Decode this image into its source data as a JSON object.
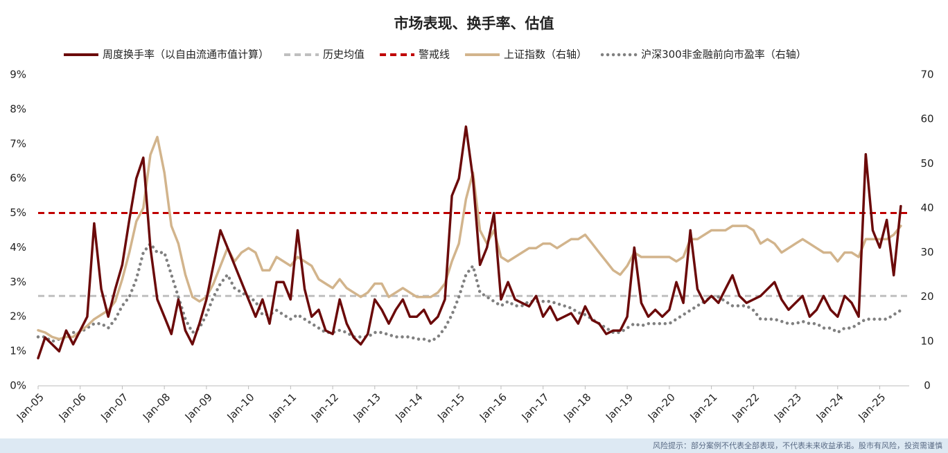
{
  "chart_data": {
    "type": "line",
    "title": "市场表现、换手率、估值",
    "x": [
      2005,
      2005.167,
      2005.333,
      2005.5,
      2005.667,
      2005.833,
      2006,
      2006.167,
      2006.333,
      2006.5,
      2006.667,
      2006.833,
      2007,
      2007.167,
      2007.333,
      2007.5,
      2007.667,
      2007.833,
      2008,
      2008.167,
      2008.333,
      2008.5,
      2008.667,
      2008.833,
      2009,
      2009.167,
      2009.333,
      2009.5,
      2009.667,
      2009.833,
      2010,
      2010.167,
      2010.333,
      2010.5,
      2010.667,
      2010.833,
      2011,
      2011.167,
      2011.333,
      2011.5,
      2011.667,
      2011.833,
      2012,
      2012.167,
      2012.333,
      2012.5,
      2012.667,
      2012.833,
      2013,
      2013.167,
      2013.333,
      2013.5,
      2013.667,
      2013.833,
      2014,
      2014.167,
      2014.333,
      2014.5,
      2014.667,
      2014.833,
      2015,
      2015.167,
      2015.333,
      2015.5,
      2015.667,
      2015.833,
      2016,
      2016.167,
      2016.333,
      2016.5,
      2016.667,
      2016.833,
      2017,
      2017.167,
      2017.333,
      2017.5,
      2017.667,
      2017.833,
      2018,
      2018.167,
      2018.333,
      2018.5,
      2018.667,
      2018.833,
      2019,
      2019.167,
      2019.333,
      2019.5,
      2019.667,
      2019.833,
      2020,
      2020.167,
      2020.333,
      2020.5,
      2020.667,
      2020.833,
      2021,
      2021.167,
      2021.333,
      2021.5,
      2021.667,
      2021.833,
      2022,
      2022.167,
      2022.333,
      2022.5,
      2022.667,
      2022.833,
      2023,
      2023.167,
      2023.333,
      2023.5,
      2023.667,
      2023.833,
      2024,
      2024.167,
      2024.333,
      2024.5,
      2024.667,
      2024.833,
      2025,
      2025.167,
      2025.333,
      2025.5
    ],
    "series": [
      {
        "name": "周度换手率（以自由流通市值计算）",
        "color": "#6b0a0a",
        "axis": "y",
        "values": [
          0.8,
          1.4,
          1.2,
          1.0,
          1.6,
          1.2,
          1.6,
          2.0,
          4.7,
          2.8,
          2.0,
          2.8,
          3.5,
          4.8,
          6.0,
          6.6,
          4.0,
          2.5,
          2.0,
          1.5,
          2.5,
          1.6,
          1.2,
          1.8,
          2.5,
          3.5,
          4.5,
          4.0,
          3.5,
          3.0,
          2.5,
          2.0,
          2.5,
          1.8,
          3.0,
          3.0,
          2.5,
          4.5,
          2.8,
          2.0,
          2.2,
          1.6,
          1.5,
          2.5,
          1.8,
          1.4,
          1.2,
          1.5,
          2.5,
          2.2,
          1.8,
          2.2,
          2.5,
          2.0,
          2.0,
          2.2,
          1.8,
          2.0,
          2.5,
          5.5,
          6.0,
          7.5,
          6.0,
          3.5,
          4.0,
          5.0,
          2.5,
          3.0,
          2.5,
          2.4,
          2.3,
          2.6,
          2.0,
          2.3,
          1.9,
          2.0,
          2.1,
          1.8,
          2.3,
          1.9,
          1.8,
          1.5,
          1.6,
          1.6,
          2.0,
          4.0,
          2.4,
          2.0,
          2.2,
          2.0,
          2.2,
          3.0,
          2.4,
          4.5,
          2.8,
          2.4,
          2.6,
          2.4,
          2.8,
          3.2,
          2.6,
          2.4,
          2.5,
          2.6,
          2.8,
          3.0,
          2.5,
          2.2,
          2.4,
          2.6,
          2.0,
          2.2,
          2.6,
          2.2,
          2.0,
          2.6,
          2.4,
          2.0,
          6.7,
          4.5,
          4.0,
          4.8,
          3.2,
          5.2
        ]
      },
      {
        "name": "上证指数（右轴）",
        "color": "#d2b48c",
        "axis": "y2",
        "values": [
          12.5,
          12,
          11,
          10.5,
          11,
          11,
          12.3,
          13.5,
          15,
          16,
          17,
          19,
          24,
          30,
          37,
          40,
          52,
          56,
          48,
          36,
          32,
          25,
          20,
          19,
          20,
          23,
          27,
          31,
          28,
          30,
          31,
          30,
          26,
          26,
          29,
          28,
          27,
          29,
          28,
          27,
          24,
          23,
          22,
          24,
          22,
          21,
          20,
          21,
          23,
          23,
          20,
          21,
          22,
          21,
          20,
          20,
          20,
          21,
          23,
          28,
          32,
          42,
          48,
          35,
          32,
          35,
          29,
          28,
          29,
          30,
          31,
          31,
          32,
          32,
          31,
          32,
          33,
          33,
          34,
          32,
          30,
          28,
          26,
          25,
          27,
          30,
          29,
          29,
          29,
          29,
          29,
          28,
          29,
          33,
          33,
          34,
          35,
          35,
          35,
          36,
          36,
          36,
          35,
          32,
          33,
          32,
          30,
          31,
          32,
          33,
          32,
          31,
          30,
          30,
          28,
          30,
          30,
          29,
          33,
          33,
          33,
          33,
          34,
          36
        ]
      },
      {
        "name": "沪深300非金融前向市盈率（右轴）",
        "color": "#808080",
        "axis": "y2",
        "dotted": true,
        "values": [
          11,
          11,
          10,
          10.5,
          11,
          12,
          12,
          13,
          14,
          14,
          13,
          15,
          18,
          20,
          24,
          30,
          32,
          30,
          30,
          25,
          20,
          15,
          12,
          13,
          16,
          20,
          23,
          25,
          22,
          21,
          20,
          19,
          16,
          16,
          17,
          16,
          15,
          16,
          15,
          14,
          13,
          12,
          12,
          12.5,
          12,
          11,
          11,
          11,
          12,
          12,
          11.5,
          11,
          11,
          11,
          10.5,
          10.5,
          10,
          11,
          13,
          16,
          20,
          25,
          27,
          21,
          20,
          19,
          18,
          19,
          18,
          18,
          19,
          19,
          19,
          19,
          18.5,
          18,
          17.5,
          16.5,
          16,
          15,
          14,
          13,
          12,
          12,
          13,
          14,
          13.5,
          14,
          14,
          14,
          14,
          15,
          16,
          17,
          18,
          19,
          20,
          20,
          19,
          18,
          18,
          18,
          17,
          15,
          15,
          15,
          14.5,
          14,
          14,
          14.5,
          14,
          14,
          13,
          13,
          12,
          13,
          13,
          14,
          15,
          15,
          15,
          15,
          16,
          17
        ]
      }
    ],
    "hlines": [
      {
        "name": "历史均值",
        "value": 2.6,
        "color": "#bfbfbf"
      },
      {
        "name": "警戒线",
        "value": 5,
        "color": "#c00000"
      }
    ],
    "xlim": [
      2005,
      2025.7
    ],
    "xticks": [
      {
        "value": 2005,
        "label": "Jan-05"
      },
      {
        "value": 2006,
        "label": "Jan-06"
      },
      {
        "value": 2007,
        "label": "Jan-07"
      },
      {
        "value": 2008,
        "label": "Jan-08"
      },
      {
        "value": 2009,
        "label": "Jan-09"
      },
      {
        "value": 2010,
        "label": "Jan-10"
      },
      {
        "value": 2011,
        "label": "Jan-11"
      },
      {
        "value": 2012,
        "label": "Jan-12"
      },
      {
        "value": 2013,
        "label": "Jan-13"
      },
      {
        "value": 2014,
        "label": "Jan-14"
      },
      {
        "value": 2015,
        "label": "Jan-15"
      },
      {
        "value": 2016,
        "label": "Jan-16"
      },
      {
        "value": 2017,
        "label": "Jan-17"
      },
      {
        "value": 2018,
        "label": "Jan-18"
      },
      {
        "value": 2019,
        "label": "Jan-19"
      },
      {
        "value": 2020,
        "label": "Jan-20"
      },
      {
        "value": 2021,
        "label": "Jan-21"
      },
      {
        "value": 2022,
        "label": "Jan-22"
      },
      {
        "value": 2023,
        "label": "Jan-23"
      },
      {
        "value": 2024,
        "label": "Jan-24"
      },
      {
        "value": 2025,
        "label": "Jan-25"
      }
    ],
    "ylim": [
      0,
      9
    ],
    "yticks": [
      {
        "value": 0,
        "label": "0%"
      },
      {
        "value": 1,
        "label": "1%"
      },
      {
        "value": 2,
        "label": "2%"
      },
      {
        "value": 3,
        "label": "3%"
      },
      {
        "value": 4,
        "label": "4%"
      },
      {
        "value": 5,
        "label": "5%"
      },
      {
        "value": 6,
        "label": "6%"
      },
      {
        "value": 7,
        "label": "7%"
      },
      {
        "value": 8,
        "label": "8%"
      },
      {
        "value": 9,
        "label": "9%"
      }
    ],
    "y2lim": [
      0,
      70
    ],
    "y2ticks": [
      0,
      10,
      20,
      30,
      40,
      50,
      60,
      70
    ]
  },
  "footer": "风险提示：部分案例不代表全部表现，不代表未来收益承诺。股市有风险，投资需谨慎"
}
